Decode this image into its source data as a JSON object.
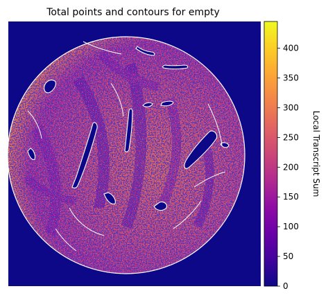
{
  "chart_data": {
    "type": "heatmap",
    "title": "Total points and contours for empty",
    "xlabel": "",
    "ylabel": "",
    "colormap": "plasma",
    "background_value": 0,
    "circular_sample": true,
    "contour_color": "#ffffff",
    "grid": false,
    "axes_ticks": false,
    "colorbar": {
      "label": "Local Transcript Sum",
      "range": [
        0,
        445
      ],
      "ticks": [
        0,
        50,
        100,
        150,
        200,
        250,
        300,
        350,
        400
      ],
      "tick_labels": [
        "0",
        "50",
        "100",
        "150",
        "200",
        "250",
        "300",
        "350",
        "400"
      ]
    },
    "colors": {
      "c0": "#0d0887",
      "c1": "#41049d",
      "c2": "#6a00a8",
      "c3": "#8f0da4",
      "c4": "#b12a90",
      "c5": "#cc4778",
      "c6": "#e16462",
      "c7": "#f2844b",
      "c8": "#fca636",
      "c9": "#fcce25",
      "c10": "#f0f921"
    }
  }
}
